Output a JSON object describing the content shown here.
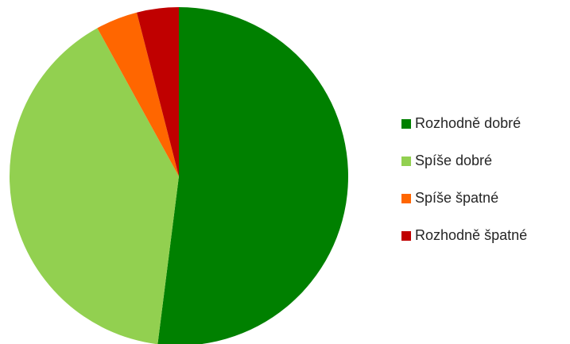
{
  "chart_data": {
    "type": "pie",
    "categories": [
      "Rozhodně dobré",
      "Spíše dobré",
      "Spíše špatné",
      "Rozhodně špatné"
    ],
    "values": [
      52,
      40,
      4,
      4
    ],
    "colors": [
      "#008000",
      "#92d050",
      "#ff6600",
      "#c00000"
    ],
    "legend": "right"
  }
}
